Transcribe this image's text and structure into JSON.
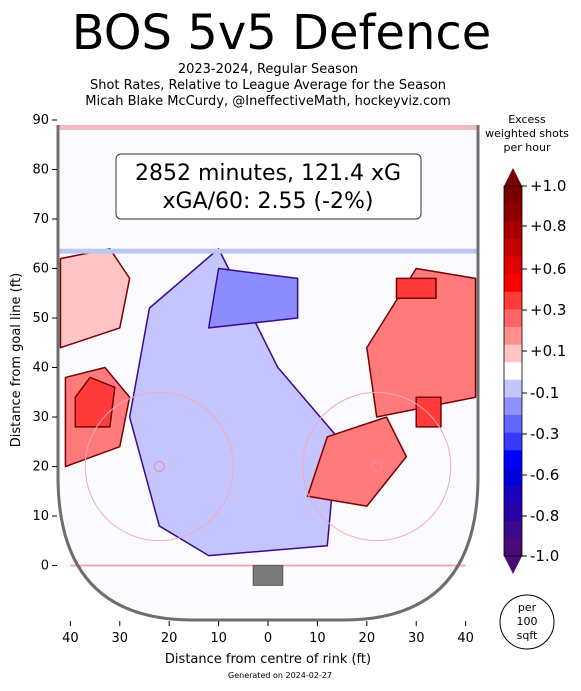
{
  "title": "BOS 5v5 Defence",
  "subtitle_lines": [
    "2023-2024, Regular Season",
    "Shot Rates, Relative to League Average for the Season",
    "Micah Blake McCurdy, @IneffectiveMath, hockeyviz.com"
  ],
  "summary_box": {
    "line1": "2852 minutes, 121.4 xG",
    "line2": "xGA/60: 2.55 (-2%)"
  },
  "footer": "Generated on 2024-02-27",
  "per_area_badge": [
    "per",
    "100",
    "sqft"
  ],
  "colors": {
    "positive_dark": "#7a0000",
    "positive": "#ff3a3a",
    "positive_light": "#ffc4c4",
    "negative_light": "#c4c4ff",
    "negative": "#4a4aff",
    "negative_dark": "#3a0a8a",
    "rink_board": "#6e6e6e",
    "blue_line": "#b8c8f0",
    "centre_line": "#f4b8c4"
  },
  "chart_data": {
    "type": "heatmap",
    "xlabel": "Distance from centre of rink (ft)",
    "ylabel": "Distance from goal line (ft)",
    "xlim": [
      -42.5,
      42.5
    ],
    "ylim": [
      -11,
      90
    ],
    "x_ticks": [
      {
        "v": -40,
        "label": "40"
      },
      {
        "v": -30,
        "label": "30"
      },
      {
        "v": -20,
        "label": "20"
      },
      {
        "v": -10,
        "label": "10"
      },
      {
        "v": 0,
        "label": "0"
      },
      {
        "v": 10,
        "label": "10"
      },
      {
        "v": 20,
        "label": "20"
      },
      {
        "v": 30,
        "label": "30"
      },
      {
        "v": 40,
        "label": "40"
      }
    ],
    "y_ticks": [
      0,
      10,
      20,
      30,
      40,
      50,
      60,
      70,
      80,
      90
    ],
    "colorbar": {
      "label_lines": [
        "Excess",
        "weighted shots",
        "per hour"
      ],
      "ticks": [
        "+1.0",
        "+0.8",
        "+0.6",
        "+0.3",
        "+0.1",
        "-0.1",
        "-0.3",
        "-0.6",
        "-0.8",
        "-1.0"
      ],
      "levels": [
        "#7a0000",
        "#8e0000",
        "#a80000",
        "#c40000",
        "#e00000",
        "#ff0000",
        "#ff3a3a",
        "#ff6464",
        "#ff9090",
        "#ffc4c4",
        "#ffffff",
        "#c4c4ff",
        "#9090ff",
        "#6464ff",
        "#3a3aff",
        "#0000ff",
        "#0000dc",
        "#1a00c0",
        "#2a00a8",
        "#3a0a8a",
        "#4a0a78"
      ]
    },
    "regions": [
      {
        "name": "left-wall-high",
        "level": 0.1,
        "x": [
          -42,
          -30,
          -28,
          -32,
          -42
        ],
        "y": [
          44,
          48,
          58,
          64,
          62
        ]
      },
      {
        "name": "left-wall-hot",
        "level": 0.3,
        "x": [
          -41,
          -30,
          -28,
          -33,
          -41
        ],
        "y": [
          20,
          24,
          34,
          40,
          38
        ]
      },
      {
        "name": "left-faceoff-hot",
        "level": 0.6,
        "x": [
          -39,
          -32,
          -31,
          -36,
          -39
        ],
        "y": [
          28,
          28,
          36,
          38,
          34
        ]
      },
      {
        "name": "slot-cold",
        "level": -0.1,
        "x": [
          -22,
          -12,
          12,
          14,
          2,
          -10,
          -24,
          -28
        ],
        "y": [
          8,
          2,
          4,
          26,
          40,
          64,
          52,
          30
        ]
      },
      {
        "name": "high-slot-cold",
        "level": -0.3,
        "x": [
          -12,
          6,
          6,
          -10
        ],
        "y": [
          48,
          50,
          58,
          60
        ]
      },
      {
        "name": "right-circle-hot",
        "level": 0.3,
        "x": [
          8,
          20,
          28,
          24,
          12
        ],
        "y": [
          14,
          12,
          22,
          30,
          26
        ]
      },
      {
        "name": "right-wall-hot",
        "level": 0.3,
        "x": [
          22,
          42,
          42,
          30,
          20
        ],
        "y": [
          30,
          34,
          58,
          60,
          44
        ]
      },
      {
        "name": "right-point-hot",
        "level": 0.6,
        "x": [
          26,
          34,
          34,
          26
        ],
        "y": [
          54,
          54,
          58,
          58
        ]
      },
      {
        "name": "right-dot-hot",
        "level": 0.6,
        "x": [
          30,
          35,
          35,
          30
        ],
        "y": [
          28,
          28,
          34,
          34
        ]
      }
    ]
  }
}
